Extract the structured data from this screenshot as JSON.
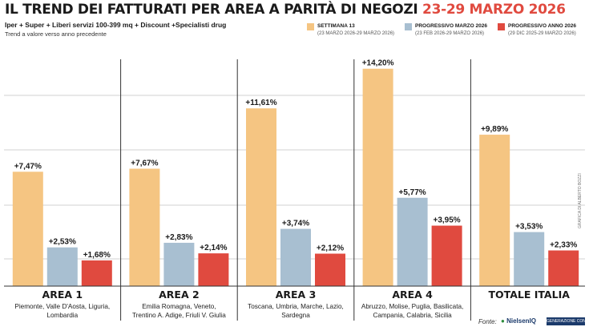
{
  "header": {
    "title_main": "IL TREND DEI FATTURATI PER AREA A PARITÀ DI NEGOZI",
    "title_period": "23-29 MARZO 2026",
    "subtitle": "Iper + Super + Liberi servizi 100-399 mq + Discount +Specialisti drug",
    "note": "Trend a valore verso anno precedente"
  },
  "legend": [
    {
      "name": "SETTIMANA 13",
      "period": "(23 MARZO 2026-29 MARZO 2026)",
      "color": "#f5c582"
    },
    {
      "name": "PROGRESSIVO MARZO 2026",
      "period": "(23 FEB 2026-29 MARZO 2026)",
      "color": "#a8bfd1"
    },
    {
      "name": "PROGRESSIVO ANNO 2026",
      "period": "(29 DIC 2025-29 MARZO 2026)",
      "color": "#e04a3f"
    }
  ],
  "chart_data": {
    "type": "bar",
    "categories": [
      "AREA 1",
      "AREA 2",
      "AREA 3",
      "AREA 4",
      "TOTALE ITALIA"
    ],
    "category_regions": [
      "Piemonte, Valle D'Aosta, Liguria, Lombardia",
      "Emilia Romagna, Veneto, Trentino A. Adige, Friuli V. Giulia",
      "Toscana, Umbria, Marche, Lazio, Sardegna",
      "Abruzzo, Molise, Puglia, Basilicata, Campania, Calabria, Sicilia",
      ""
    ],
    "category_regions_lines": [
      [
        "Piemonte, Valle D'Aosta, Liguria,",
        "Lombardia"
      ],
      [
        "Emilia Romagna, Veneto,",
        "Trentino A. Adige, Friuli V. Giulia"
      ],
      [
        "Toscana, Umbria, Marche, Lazio,",
        "Sardegna"
      ],
      [
        "Abruzzo, Molise, Puglia, Basilicata,",
        "Campania, Calabria, Sicilia"
      ],
      []
    ],
    "series": [
      {
        "name": "SETTIMANA 13",
        "values": [
          7.47,
          7.67,
          11.61,
          14.2,
          9.89
        ],
        "labels": [
          "+7,47%",
          "+7,67%",
          "+11,61%",
          "+14,20%",
          "+9,89%"
        ]
      },
      {
        "name": "PROGRESSIVO MARZO 2026",
        "values": [
          2.53,
          2.83,
          3.74,
          5.77,
          3.53
        ],
        "labels": [
          "+2,53%",
          "+2,83%",
          "+3,74%",
          "+5,77%",
          "+3,53%"
        ]
      },
      {
        "name": "PROGRESSIVO ANNO 2026",
        "values": [
          1.68,
          2.14,
          2.12,
          3.95,
          2.33
        ],
        "labels": [
          "+1,68%",
          "+2,14%",
          "+2,12%",
          "+3,95%",
          "+2,33%"
        ]
      }
    ],
    "ylim": [
      0,
      14.5
    ],
    "grid": true,
    "legend_position": "top-right"
  },
  "side_credit": "GRAFICA DI ALBERTO BOZZI",
  "footer": {
    "source_label": "Fonte:",
    "logo_nielsen": "NielsenIQ",
    "logo_box": "GENERAZIONE CONSUMI"
  }
}
